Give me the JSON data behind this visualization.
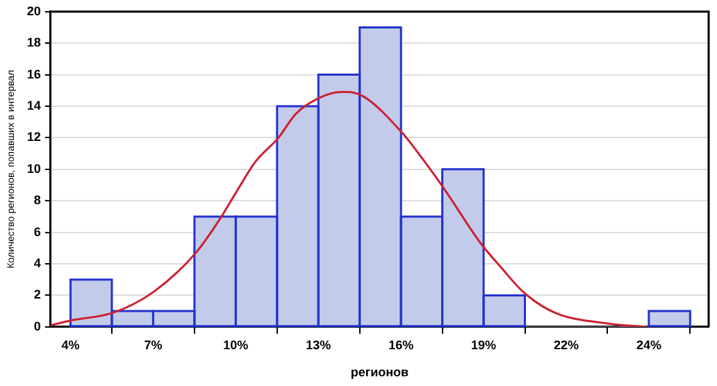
{
  "chart_data": {
    "type": "histogram",
    "xlabel": "регионов",
    "ylabel": "Количество регионов, попавших в интервал",
    "bins": [
      4.1,
      5.55,
      7,
      8.45,
      9.9,
      11.35,
      12.8,
      14.25,
      15.7,
      17.15,
      18.6,
      20.05,
      21.5,
      22.95,
      24.4,
      25.85
    ],
    "values": [
      3,
      1,
      1,
      7,
      7,
      14,
      16,
      19,
      7,
      10,
      2,
      0,
      0,
      0,
      1
    ],
    "color": "#c3cbea",
    "series": [
      {
        "type": "line",
        "color": "#cc2233",
        "x": [
          3.4,
          4.1,
          5.6,
          7,
          8.5,
          9.4,
          9.9,
          10.6,
          11.4,
          12,
          12.8,
          13.6,
          13.8,
          14.4,
          15.7,
          16.4,
          17.2,
          18.5,
          19.2,
          20,
          21.1,
          23,
          24.3
        ],
        "values": [
          0.1,
          0.4,
          0.9,
          2.2,
          4.7,
          7,
          8.5,
          10.5,
          12,
          13.5,
          14.5,
          14.9,
          14.9,
          14.6,
          12.4,
          10.8,
          8.8,
          5.3,
          3.8,
          2.2,
          0.9,
          0.2,
          0
        ]
      }
    ],
    "xlim": [
      3.4,
      26.5
    ],
    "ylim": [
      0,
      20
    ],
    "xticks": [
      {
        "value": 4.1,
        "label": "4%"
      },
      {
        "value": 7,
        "label": "7%"
      },
      {
        "value": 9.9,
        "label": "10%"
      },
      {
        "value": 12.8,
        "label": "13%"
      },
      {
        "value": 15.7,
        "label": "16%"
      },
      {
        "value": 18.6,
        "label": "19%"
      },
      {
        "value": 21.5,
        "label": "22%"
      },
      {
        "value": 24.4,
        "label": "24%"
      }
    ],
    "yticks": [
      0,
      2,
      4,
      6,
      8,
      10,
      12,
      14,
      16,
      18,
      20
    ],
    "grid": "y",
    "marker": "none"
  }
}
